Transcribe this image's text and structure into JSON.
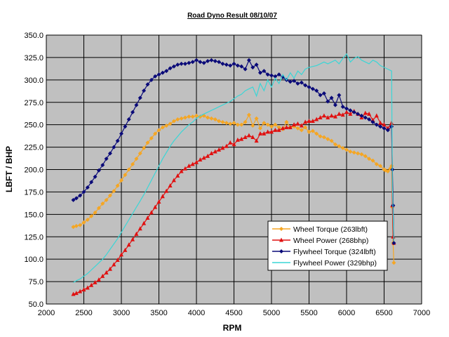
{
  "chart_data": {
    "type": "line",
    "title": "Road Dyno Result 08/10/07",
    "xlabel": "RPM",
    "ylabel": "LBFT / BHP",
    "xlim": [
      2000,
      7000
    ],
    "ylim": [
      50,
      350
    ],
    "x_ticks": [
      "2000",
      "2500",
      "3000",
      "3500",
      "4000",
      "4500",
      "5000",
      "5500",
      "6000",
      "6500",
      "7000"
    ],
    "y_ticks": [
      "50.0",
      "75.0",
      "100.0",
      "125.0",
      "150.0",
      "175.0",
      "200.0",
      "225.0",
      "250.0",
      "275.0",
      "300.0",
      "325.0",
      "350.0"
    ],
    "grid": true,
    "legend_position": "bottom-right",
    "plot_background": "#c0c0c0",
    "series": [
      {
        "name": "Wheel Torque (263lbft)",
        "color": "#f5a623",
        "marker": "diamond",
        "x": [
          2360,
          2400,
          2450,
          2500,
          2550,
          2600,
          2650,
          2700,
          2750,
          2800,
          2850,
          2900,
          2950,
          3000,
          3050,
          3100,
          3150,
          3200,
          3250,
          3300,
          3350,
          3400,
          3450,
          3500,
          3550,
          3600,
          3650,
          3700,
          3750,
          3800,
          3850,
          3900,
          3950,
          4000,
          4050,
          4100,
          4150,
          4200,
          4250,
          4300,
          4350,
          4400,
          4450,
          4500,
          4550,
          4600,
          4650,
          4700,
          4750,
          4800,
          4850,
          4900,
          4950,
          5000,
          5050,
          5100,
          5150,
          5200,
          5250,
          5300,
          5350,
          5400,
          5450,
          5500,
          5550,
          5600,
          5650,
          5700,
          5750,
          5800,
          5850,
          5900,
          5950,
          6000,
          6050,
          6100,
          6150,
          6200,
          6250,
          6300,
          6350,
          6400,
          6450,
          6500,
          6520,
          6550,
          6580,
          6600,
          6610,
          6620,
          6630
        ],
        "y": [
          136,
          137,
          138,
          141,
          144,
          148,
          152,
          157,
          162,
          166,
          171,
          176,
          182,
          188,
          194,
          200,
          206,
          212,
          218,
          224,
          230,
          235,
          240,
          244,
          247,
          249,
          251,
          254,
          256,
          257,
          258,
          259,
          259,
          260,
          259,
          260,
          258,
          257,
          256,
          254,
          253,
          252,
          251,
          252,
          250,
          250,
          253,
          261,
          249,
          257,
          246,
          252,
          250,
          248,
          250,
          247,
          245,
          253,
          247,
          248,
          246,
          244,
          247,
          242,
          243,
          240,
          237,
          236,
          234,
          232,
          228,
          226,
          224,
          222,
          220,
          219,
          218,
          217,
          215,
          212,
          210,
          206,
          204,
          200,
          199,
          198,
          201,
          204,
          158,
          118,
          96
        ]
      },
      {
        "name": "Wheel Power (268bhp)",
        "color": "#e01010",
        "marker": "triangle",
        "x": [
          2360,
          2400,
          2450,
          2500,
          2550,
          2600,
          2650,
          2700,
          2750,
          2800,
          2850,
          2900,
          2950,
          3000,
          3050,
          3100,
          3150,
          3200,
          3250,
          3300,
          3350,
          3400,
          3450,
          3500,
          3550,
          3600,
          3650,
          3700,
          3750,
          3800,
          3850,
          3900,
          3950,
          4000,
          4050,
          4100,
          4150,
          4200,
          4250,
          4300,
          4350,
          4400,
          4450,
          4500,
          4550,
          4600,
          4650,
          4700,
          4750,
          4800,
          4850,
          4900,
          4950,
          5000,
          5050,
          5100,
          5150,
          5200,
          5250,
          5300,
          5350,
          5400,
          5450,
          5500,
          5550,
          5600,
          5650,
          5700,
          5750,
          5800,
          5850,
          5900,
          5950,
          6000,
          6050,
          6100,
          6150,
          6200,
          6250,
          6300,
          6350,
          6400,
          6450,
          6500,
          6550,
          6600,
          6610,
          6620,
          6630
        ],
        "y": [
          61,
          62,
          64,
          66,
          68,
          71,
          74,
          77,
          81,
          85,
          89,
          94,
          99,
          105,
          110,
          116,
          122,
          128,
          134,
          140,
          146,
          152,
          158,
          164,
          170,
          176,
          182,
          188,
          193,
          198,
          201,
          204,
          206,
          208,
          211,
          213,
          215,
          218,
          220,
          222,
          224,
          226,
          230,
          228,
          233,
          234,
          236,
          238,
          236,
          232,
          240,
          240,
          242,
          242,
          244,
          244,
          246,
          247,
          247,
          250,
          251,
          249,
          253,
          254,
          254,
          256,
          258,
          260,
          258,
          260,
          259,
          262,
          261,
          264,
          262,
          265,
          262,
          258,
          263,
          262,
          255,
          260,
          252,
          250,
          246,
          252,
          160,
          125,
          118
        ]
      },
      {
        "name": "Flywheel Torque (324lbft)",
        "color": "#0a0a78",
        "marker": "diamond",
        "x": [
          2360,
          2400,
          2450,
          2500,
          2550,
          2600,
          2650,
          2700,
          2750,
          2800,
          2850,
          2900,
          2950,
          3000,
          3050,
          3100,
          3150,
          3200,
          3250,
          3300,
          3350,
          3400,
          3450,
          3500,
          3550,
          3600,
          3650,
          3700,
          3750,
          3800,
          3850,
          3900,
          3950,
          4000,
          4050,
          4100,
          4150,
          4200,
          4250,
          4300,
          4350,
          4400,
          4450,
          4500,
          4550,
          4600,
          4650,
          4700,
          4750,
          4800,
          4850,
          4900,
          4950,
          5000,
          5050,
          5100,
          5150,
          5200,
          5250,
          5300,
          5350,
          5400,
          5450,
          5500,
          5550,
          5600,
          5650,
          5700,
          5750,
          5800,
          5850,
          5900,
          5950,
          6000,
          6050,
          6100,
          6150,
          6200,
          6250,
          6300,
          6350,
          6400,
          6450,
          6500,
          6550,
          6600,
          6610,
          6620,
          6630
        ],
        "y": [
          166,
          168,
          171,
          175,
          180,
          186,
          192,
          199,
          205,
          212,
          218,
          225,
          232,
          240,
          248,
          256,
          264,
          272,
          280,
          288,
          295,
          300,
          304,
          306,
          308,
          310,
          313,
          315,
          317,
          318,
          318,
          319,
          320,
          322,
          320,
          319,
          321,
          322,
          321,
          320,
          318,
          317,
          316,
          318,
          316,
          315,
          312,
          322,
          314,
          317,
          308,
          310,
          306,
          305,
          304,
          306,
          303,
          300,
          298,
          299,
          296,
          297,
          294,
          292,
          290,
          288,
          283,
          285,
          276,
          280,
          272,
          283,
          270,
          268,
          266,
          264,
          262,
          260,
          258,
          256,
          253,
          250,
          248,
          246,
          244,
          248,
          200,
          160,
          118
        ]
      },
      {
        "name": "Flywheel Power (329bhp)",
        "color": "#3ad6d6",
        "marker": "none",
        "x": [
          2360,
          2400,
          2450,
          2500,
          2550,
          2600,
          2650,
          2700,
          2750,
          2800,
          2850,
          2900,
          2950,
          3000,
          3050,
          3100,
          3150,
          3200,
          3250,
          3300,
          3350,
          3400,
          3450,
          3500,
          3550,
          3600,
          3650,
          3700,
          3750,
          3800,
          3850,
          3900,
          3950,
          4000,
          4050,
          4100,
          4150,
          4200,
          4250,
          4300,
          4350,
          4400,
          4450,
          4500,
          4550,
          4600,
          4650,
          4700,
          4750,
          4800,
          4850,
          4900,
          4950,
          5000,
          5050,
          5100,
          5150,
          5200,
          5250,
          5300,
          5350,
          5400,
          5450,
          5500,
          5550,
          5600,
          5650,
          5700,
          5750,
          5800,
          5850,
          5900,
          5950,
          6000,
          6050,
          6100,
          6150,
          6200,
          6250,
          6300,
          6350,
          6400,
          6450,
          6500,
          6550,
          6600,
          6610,
          6620,
          6630
        ],
        "y": [
          74,
          76,
          78,
          81,
          84,
          88,
          92,
          96,
          100,
          105,
          111,
          117,
          123,
          130,
          137,
          144,
          151,
          158,
          165,
          172,
          180,
          188,
          196,
          204,
          212,
          219,
          226,
          232,
          237,
          242,
          246,
          250,
          253,
          257,
          260,
          262,
          264,
          266,
          268,
          270,
          272,
          274,
          276,
          279,
          282,
          284,
          288,
          290,
          292,
          282,
          296,
          288,
          300,
          292,
          302,
          296,
          306,
          300,
          308,
          302,
          310,
          306,
          312,
          314,
          315,
          316,
          318,
          320,
          318,
          320,
          322,
          318,
          324,
          329,
          320,
          324,
          326,
          322,
          320,
          318,
          322,
          320,
          316,
          314,
          312,
          310,
          180,
          150,
          120
        ]
      }
    ]
  }
}
